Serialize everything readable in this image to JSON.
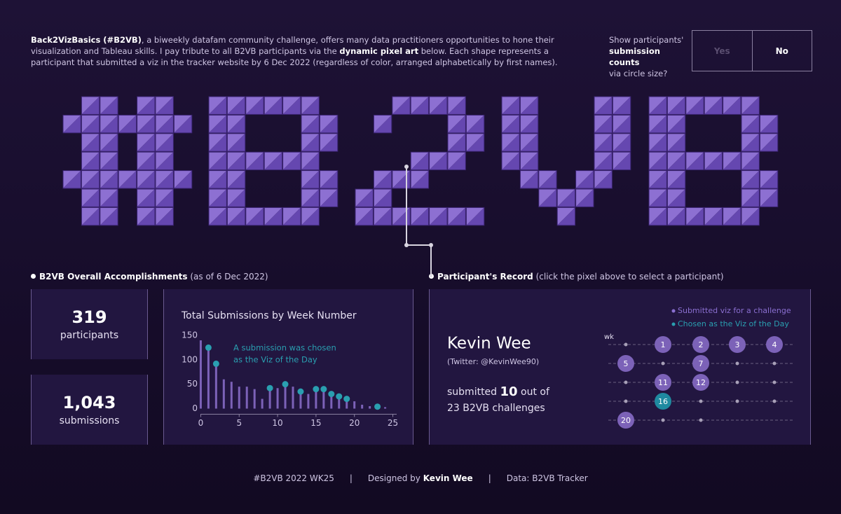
{
  "intro": {
    "parts": [
      {
        "text": "Back2VizBasics (#B2VB)",
        "bold": true
      },
      {
        "text": ", a biweekly datafam community challenge, offers many data practitioners opportunities to hone their visualization and Tableau skills. I pay tribute to all B2VB participants via the ",
        "bold": false
      },
      {
        "text": "dynamic pixel art",
        "bold": true
      },
      {
        "text": " below. Each shape represents a participant that submitted a viz in the tracker website by 6 Dec 2022 (regardless of color, arranged alphabetically by first names).",
        "bold": false
      }
    ]
  },
  "toggle": {
    "question": [
      {
        "text": "Show participants'",
        "bold": false
      },
      {
        "text": "submission counts",
        "bold": true
      },
      {
        "text": "via circle size?",
        "bold": false
      }
    ],
    "options": [
      "Yes",
      "No"
    ]
  },
  "accomplishments": {
    "heading": "B2VB Overall Accomplishments",
    "heading_note": "(as of 6 Dec 2022)",
    "stats": [
      {
        "value": "319",
        "label": "participants"
      },
      {
        "value": "1,043",
        "label": "submissions"
      }
    ]
  },
  "chart_data": {
    "type": "lollipop",
    "title": "Total Submissions by Week Number",
    "annotation": [
      "A submission was chosen",
      "as the Viz of the Day"
    ],
    "x": [
      0,
      1,
      2,
      3,
      4,
      5,
      6,
      7,
      8,
      9,
      10,
      11,
      12,
      13,
      14,
      15,
      16,
      17,
      18,
      19,
      20,
      21,
      22,
      23,
      24
    ],
    "series": [
      {
        "name": "Submissions",
        "color": "#7c62b8",
        "values": [
          140,
          125,
          92,
          60,
          55,
          45,
          45,
          40,
          20,
          42,
          42,
          50,
          45,
          35,
          30,
          40,
          40,
          30,
          25,
          20,
          15,
          8,
          5,
          4,
          3
        ]
      }
    ],
    "highlight_weeks": [
      1,
      2,
      9,
      11,
      13,
      15,
      16,
      17,
      18,
      19,
      23
    ],
    "highlight_color": "#2a9fb0",
    "xlim": [
      -1.5,
      25.5
    ],
    "xticks": [
      0,
      5,
      10,
      15,
      20,
      25
    ],
    "ylim": [
      -5,
      160
    ],
    "yticks": [
      0,
      50,
      100,
      150
    ]
  },
  "record": {
    "heading": "Participant's Record",
    "heading_note": "(click the pixel above to select a participant)",
    "name": "Kevin Wee",
    "handle": "(Twitter: @KevinWee90)",
    "submitted_text": "submitted",
    "count": 10,
    "out_of_text": "out of",
    "total": 23,
    "total_suffix": "B2VB challenges",
    "legend": [
      "Submitted viz for a challenge",
      "Chosen as the Viz of the Day"
    ],
    "week_axis_label": "wk",
    "submitted_weeks": [
      1,
      2,
      3,
      4,
      5,
      7,
      11,
      12,
      16,
      20
    ],
    "votd_weeks": [
      16
    ]
  },
  "footer": {
    "tag": "#B2VB 2022 WK25",
    "designed_by": "Designed by",
    "designer": "Kevin Wee",
    "source": "Data: B2VB Tracker"
  }
}
